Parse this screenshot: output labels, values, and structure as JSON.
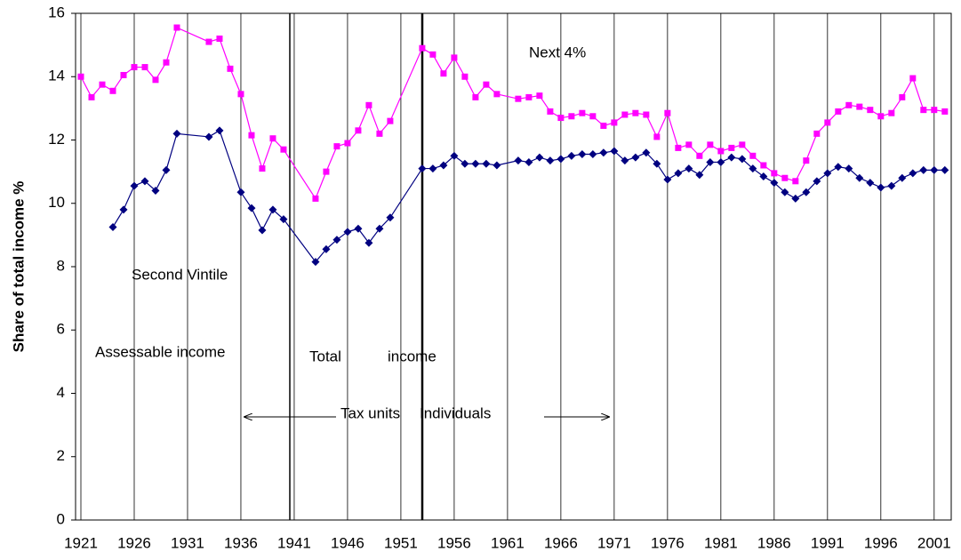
{
  "chart_data": {
    "type": "line",
    "y_label": "Share of total income %",
    "xlim": [
      1920.5,
      2002.6
    ],
    "xticks": [
      1921,
      1926,
      1931,
      1936,
      1941,
      1946,
      1951,
      1956,
      1961,
      1966,
      1971,
      1976,
      1981,
      1986,
      1991,
      1996,
      2001
    ],
    "ylim": [
      0,
      16
    ],
    "yticks": [
      0,
      2,
      4,
      6,
      8,
      10,
      12,
      14,
      16
    ],
    "grid": "x",
    "annotations": [
      "Next 4%",
      "Second Vintile",
      "Assessable income",
      "Total",
      "income",
      "Tax units",
      "Individuals"
    ],
    "series": [
      {
        "name": "Next 4%",
        "color": "#ff00ff",
        "marker": "square",
        "x": [
          1921,
          1922,
          1923,
          1924,
          1925,
          1926,
          1927,
          1928,
          1929,
          1930,
          1933,
          1934,
          1935,
          1936,
          1937,
          1938,
          1939,
          1940,
          1943,
          1944,
          1945,
          1946,
          1947,
          1948,
          1949,
          1950,
          1953,
          1954,
          1955,
          1956,
          1957,
          1958,
          1959,
          1960,
          1962,
          1963,
          1964,
          1965,
          1966,
          1967,
          1968,
          1969,
          1970,
          1971,
          1972,
          1973,
          1974,
          1975,
          1976,
          1977,
          1978,
          1979,
          1980,
          1981,
          1982,
          1983,
          1984,
          1985,
          1986,
          1987,
          1988,
          1989,
          1990,
          1991,
          1992,
          1993,
          1994,
          1995,
          1996,
          1997,
          1998,
          1999,
          2000,
          2001,
          2002
        ],
        "values": [
          14.0,
          13.35,
          13.75,
          13.55,
          14.05,
          14.3,
          14.3,
          13.9,
          14.45,
          15.55,
          15.1,
          15.2,
          14.25,
          13.45,
          12.15,
          11.1,
          12.05,
          11.7,
          10.15,
          11.0,
          11.8,
          11.9,
          12.3,
          13.1,
          12.2,
          12.6,
          14.9,
          14.7,
          14.1,
          14.6,
          14.0,
          13.35,
          13.75,
          13.45,
          13.3,
          13.35,
          13.4,
          12.9,
          12.7,
          12.75,
          12.85,
          12.75,
          12.45,
          12.55,
          12.8,
          12.85,
          12.8,
          12.1,
          12.85,
          11.75,
          11.85,
          11.5,
          11.85,
          11.65,
          11.75,
          11.85,
          11.5,
          11.2,
          10.95,
          10.8,
          10.7,
          11.35,
          12.2,
          12.55,
          12.9,
          13.1,
          13.05,
          12.95,
          12.75,
          12.85,
          13.35,
          13.95,
          12.95,
          12.95,
          12.9
        ]
      },
      {
        "name": "Second Vintile",
        "color": "#000080",
        "marker": "diamond",
        "x": [
          1924,
          1925,
          1926,
          1927,
          1928,
          1929,
          1930,
          1933,
          1934,
          1936,
          1937,
          1938,
          1939,
          1940,
          1943,
          1944,
          1945,
          1946,
          1947,
          1948,
          1949,
          1950,
          1953,
          1954,
          1955,
          1956,
          1957,
          1958,
          1959,
          1960,
          1962,
          1963,
          1964,
          1965,
          1966,
          1967,
          1968,
          1969,
          1970,
          1971,
          1972,
          1973,
          1974,
          1975,
          1976,
          1977,
          1978,
          1979,
          1980,
          1981,
          1982,
          1983,
          1984,
          1985,
          1986,
          1987,
          1988,
          1989,
          1990,
          1991,
          1992,
          1993,
          1994,
          1995,
          1996,
          1997,
          1998,
          1999,
          2000,
          2001,
          2002
        ],
        "values": [
          9.25,
          9.8,
          10.55,
          10.7,
          10.4,
          11.05,
          12.2,
          12.1,
          12.3,
          10.35,
          9.85,
          9.15,
          9.8,
          9.5,
          8.15,
          8.55,
          8.85,
          9.1,
          9.2,
          8.75,
          9.2,
          9.55,
          11.1,
          11.1,
          11.2,
          11.5,
          11.25,
          11.25,
          11.25,
          11.2,
          11.35,
          11.3,
          11.45,
          11.35,
          11.4,
          11.5,
          11.55,
          11.55,
          11.6,
          11.65,
          11.35,
          11.45,
          11.6,
          11.25,
          10.75,
          10.95,
          11.1,
          10.9,
          11.3,
          11.3,
          11.45,
          11.4,
          11.1,
          10.85,
          10.65,
          10.35,
          10.15,
          10.35,
          10.7,
          10.95,
          11.15,
          11.1,
          10.8,
          10.65,
          10.5,
          10.55,
          10.8,
          10.95,
          11.05,
          11.05,
          11.05
        ]
      }
    ]
  }
}
